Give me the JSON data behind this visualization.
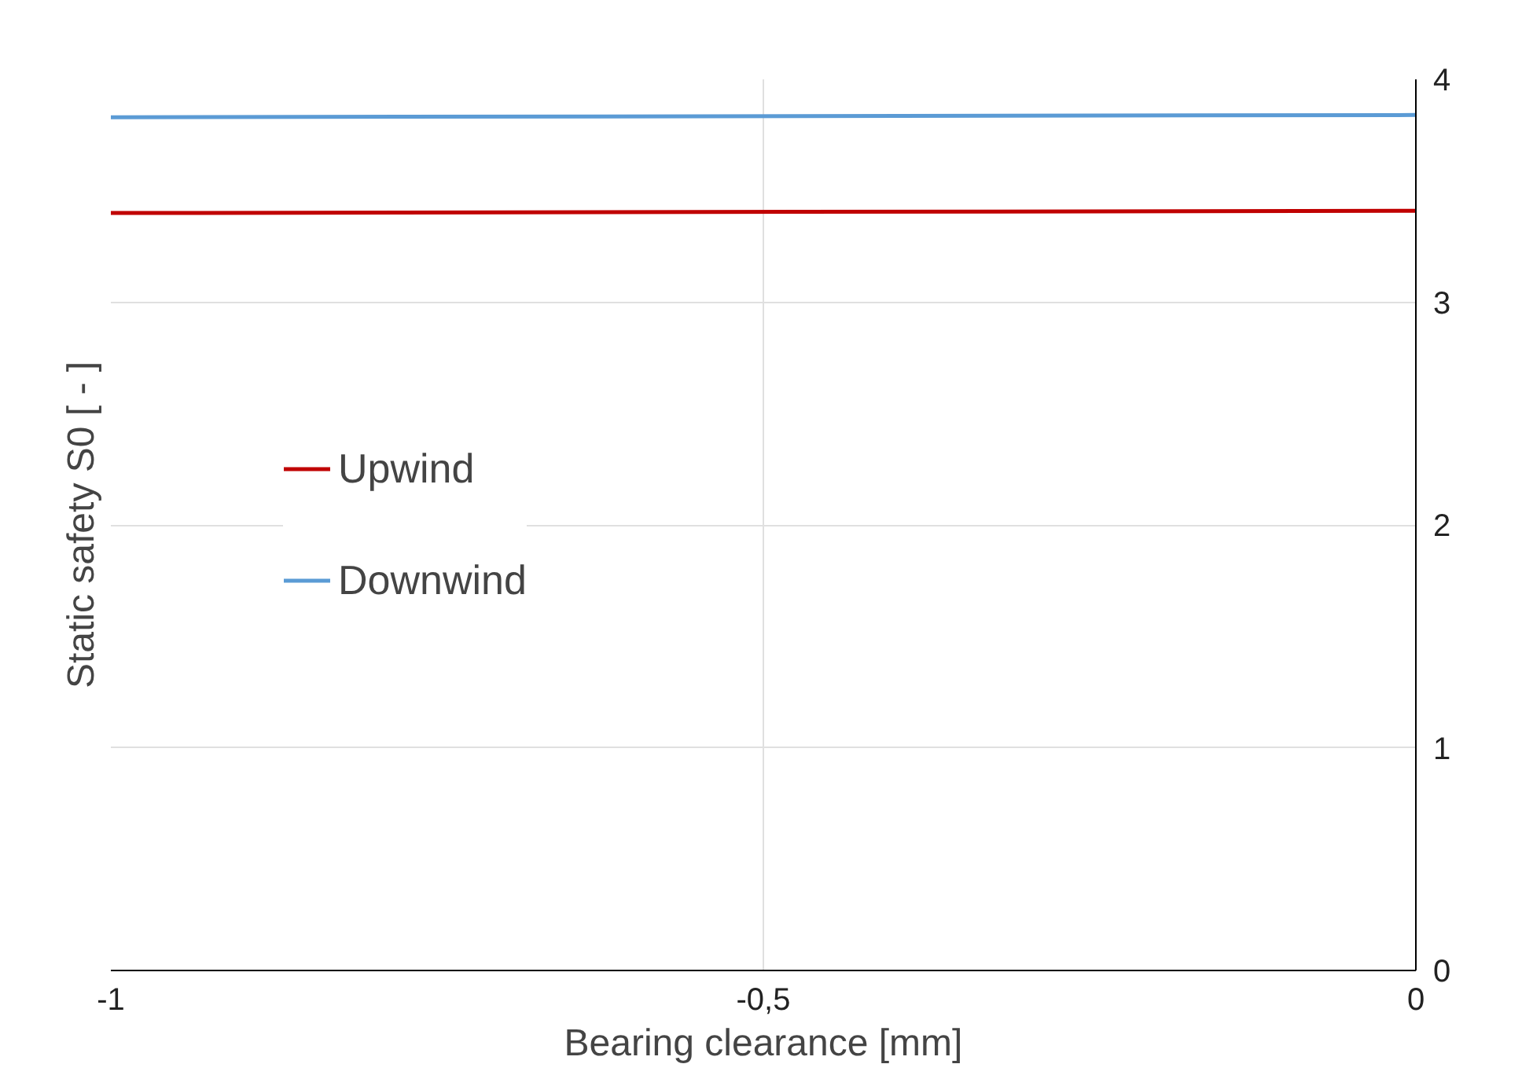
{
  "chart_data": {
    "type": "line",
    "xlabel": "Bearing clearance [mm]",
    "ylabel": "Static safety S0 [ - ]",
    "x": [
      -1,
      0
    ],
    "series": [
      {
        "name": "Upwind",
        "color": "#c00000",
        "values": [
          3.4,
          3.41
        ]
      },
      {
        "name": "Downwind",
        "color": "#5b9bd5",
        "values": [
          3.83,
          3.84
        ]
      }
    ],
    "xlim": [
      -1,
      0
    ],
    "xticks": [
      -1,
      {
        "value": -0.5,
        "label": "-0,5"
      },
      0
    ],
    "ylim": [
      0,
      4
    ],
    "yticks": [
      0,
      1,
      2,
      3,
      4
    ],
    "grid": true,
    "legend": "left",
    "marker": "none",
    "line_style": "solid"
  }
}
